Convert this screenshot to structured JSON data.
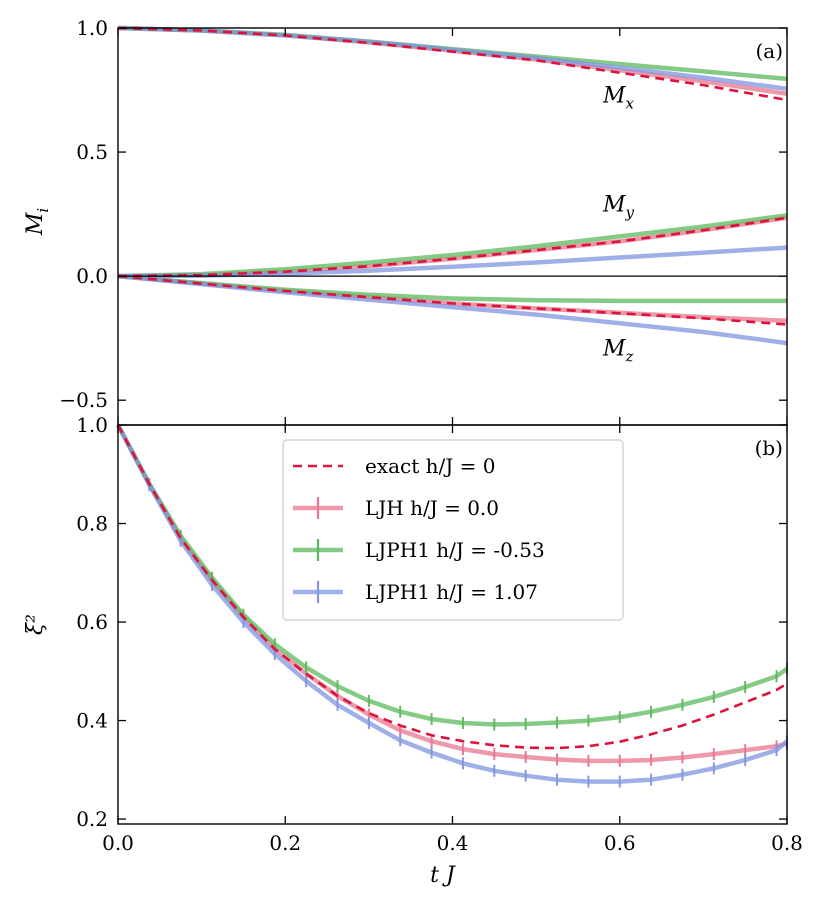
{
  "figure": {
    "x_label": "t J",
    "x_ticks": [
      "0.0",
      "0.2",
      "0.4",
      "0.6",
      "0.8"
    ],
    "colors": {
      "exact": "#dc143c",
      "LJH": "#e8758f",
      "LJPH1_neg": "#5cb85c",
      "LJPH1_pos": "#7f96e0"
    }
  },
  "chart_data": [
    {
      "type": "line",
      "panel_label": "(a)",
      "ylabel": "M_i",
      "xlim": [
        0,
        0.8
      ],
      "ylim": [
        -0.6,
        1.0
      ],
      "y_ticks": [
        "1.0",
        "0.5",
        "0.0",
        "−0.5"
      ],
      "annotations": [
        {
          "base": "M",
          "sub": "x",
          "x": 0.58,
          "y": 0.7
        },
        {
          "base": "M",
          "sub": "y",
          "x": 0.58,
          "y": 0.26
        },
        {
          "base": "M",
          "sub": "z",
          "x": 0.58,
          "y": -0.32
        }
      ],
      "x": [
        0.0,
        0.1,
        0.2,
        0.3,
        0.4,
        0.5,
        0.6,
        0.7,
        0.8
      ],
      "series": [
        {
          "name": "exact h/J = 0",
          "component": "Mx",
          "style": "exact",
          "values": [
            1.0,
            0.99,
            0.97,
            0.94,
            0.905,
            0.87,
            0.82,
            0.77,
            0.71
          ]
        },
        {
          "name": "exact h/J = 0",
          "component": "My",
          "style": "exact",
          "values": [
            0.0,
            0.004,
            0.018,
            0.04,
            0.07,
            0.105,
            0.14,
            0.185,
            0.235
          ]
        },
        {
          "name": "exact h/J = 0",
          "component": "Mz",
          "style": "exact",
          "values": [
            0.0,
            -0.03,
            -0.06,
            -0.085,
            -0.11,
            -0.13,
            -0.15,
            -0.17,
            -0.195
          ]
        },
        {
          "name": "LJH h/J = 0.0",
          "component": "Mx",
          "style": "LJH",
          "values": [
            1.0,
            0.99,
            0.97,
            0.942,
            0.908,
            0.873,
            0.83,
            0.785,
            0.735
          ]
        },
        {
          "name": "LJH h/J = 0.0",
          "component": "My",
          "style": "LJH",
          "values": [
            0.0,
            0.004,
            0.018,
            0.04,
            0.07,
            0.105,
            0.14,
            0.185,
            0.235
          ]
        },
        {
          "name": "LJH h/J = 0.0",
          "component": "Mz",
          "style": "LJH",
          "values": [
            0.0,
            -0.03,
            -0.06,
            -0.085,
            -0.11,
            -0.13,
            -0.148,
            -0.165,
            -0.18
          ]
        },
        {
          "name": "LJPH1 h/J = -0.53",
          "component": "Mx",
          "style": "LJPH1_neg",
          "values": [
            1.0,
            0.99,
            0.972,
            0.945,
            0.915,
            0.885,
            0.855,
            0.825,
            0.795
          ]
        },
        {
          "name": "LJPH1 h/J = -0.53",
          "component": "My",
          "style": "LJPH1_neg",
          "values": [
            0.0,
            0.008,
            0.028,
            0.055,
            0.085,
            0.12,
            0.16,
            0.2,
            0.245
          ]
        },
        {
          "name": "LJPH1 h/J = -0.53",
          "component": "Mz",
          "style": "LJPH1_neg",
          "values": [
            0.0,
            -0.028,
            -0.055,
            -0.075,
            -0.09,
            -0.097,
            -0.1,
            -0.1,
            -0.1
          ]
        },
        {
          "name": "LJPH1 h/J = 1.07",
          "component": "Mx",
          "style": "LJPH1_pos",
          "values": [
            1.0,
            0.99,
            0.97,
            0.945,
            0.912,
            0.88,
            0.84,
            0.8,
            0.755
          ]
        },
        {
          "name": "LJPH1 h/J = 1.07",
          "component": "My",
          "style": "LJPH1_pos",
          "values": [
            0.0,
            0.002,
            0.01,
            0.022,
            0.038,
            0.055,
            0.075,
            0.095,
            0.115
          ]
        },
        {
          "name": "LJPH1 h/J = 1.07",
          "component": "Mz",
          "style": "LJPH1_pos",
          "values": [
            0.0,
            -0.032,
            -0.065,
            -0.095,
            -0.125,
            -0.155,
            -0.19,
            -0.225,
            -0.27
          ]
        }
      ]
    },
    {
      "type": "line",
      "panel_label": "(b)",
      "ylabel": "ξ²",
      "xlim": [
        0,
        0.8
      ],
      "ylim": [
        0.19,
        1.0
      ],
      "y_ticks": [
        "1.0",
        "0.8",
        "0.6",
        "0.4",
        "0.2"
      ],
      "legend": {
        "placement": "top-center",
        "entries": [
          {
            "label": "exact h/J = 0",
            "style": "exact"
          },
          {
            "label": "LJH h/J = 0.0",
            "style": "LJH"
          },
          {
            "label": "LJPH1 h/J = -0.53",
            "style": "LJPH1_neg"
          },
          {
            "label": "LJPH1 h/J = 1.07",
            "style": "LJPH1_pos"
          }
        ]
      },
      "x": [
        0.0,
        0.0375,
        0.075,
        0.1125,
        0.15,
        0.1875,
        0.225,
        0.2625,
        0.3,
        0.3375,
        0.375,
        0.4125,
        0.45,
        0.4875,
        0.525,
        0.5625,
        0.6,
        0.6375,
        0.675,
        0.7125,
        0.75,
        0.7875,
        0.8
      ],
      "series": [
        {
          "name": "exact h/J = 0",
          "style": "exact",
          "values": [
            1.0,
            0.88,
            0.77,
            0.685,
            0.61,
            0.545,
            0.495,
            0.45,
            0.415,
            0.39,
            0.37,
            0.358,
            0.35,
            0.345,
            0.344,
            0.348,
            0.357,
            0.372,
            0.39,
            0.412,
            0.437,
            0.462,
            0.475
          ]
        },
        {
          "name": "LJH h/J = 0.0",
          "style": "LJH",
          "values": [
            1.0,
            0.88,
            0.77,
            0.685,
            0.61,
            0.545,
            0.495,
            0.45,
            0.412,
            0.38,
            0.358,
            0.342,
            0.332,
            0.326,
            0.321,
            0.318,
            0.318,
            0.32,
            0.325,
            0.332,
            0.34,
            0.348,
            0.353
          ]
        },
        {
          "name": "LJPH1 h/J = -0.53",
          "style": "LJPH1_neg",
          "values": [
            1.0,
            0.88,
            0.775,
            0.69,
            0.615,
            0.555,
            0.508,
            0.47,
            0.44,
            0.418,
            0.403,
            0.395,
            0.392,
            0.393,
            0.396,
            0.4,
            0.407,
            0.418,
            0.432,
            0.448,
            0.468,
            0.49,
            0.505
          ]
        },
        {
          "name": "LJPH1 h/J = 1.07",
          "style": "LJPH1_pos",
          "values": [
            1.0,
            0.878,
            0.765,
            0.675,
            0.6,
            0.535,
            0.48,
            0.432,
            0.395,
            0.36,
            0.335,
            0.313,
            0.298,
            0.288,
            0.28,
            0.276,
            0.276,
            0.28,
            0.29,
            0.303,
            0.32,
            0.34,
            0.358
          ]
        }
      ]
    }
  ]
}
